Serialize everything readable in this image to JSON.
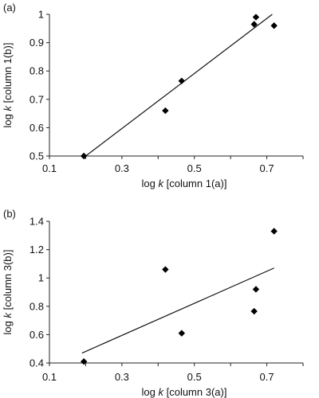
{
  "chart_data": [
    {
      "type": "scatter",
      "panel_label": "(a)",
      "xlabel": {
        "prefix": "log ",
        "italic": "k",
        "suffix": " [column 1(a)]"
      },
      "ylabel": {
        "prefix": "log ",
        "italic": "k",
        "suffix": " [column 1(b)]"
      },
      "xlim": [
        0.1,
        0.8
      ],
      "ylim": [
        0.5,
        1.0
      ],
      "x_ticks": [
        "0.1",
        "0.3",
        "0.5",
        "0.7"
      ],
      "y_ticks": [
        "0.5",
        "0.6",
        "0.7",
        "0.8",
        "0.9",
        "1"
      ],
      "points": [
        {
          "x": 0.195,
          "y": 0.5
        },
        {
          "x": 0.42,
          "y": 0.66
        },
        {
          "x": 0.465,
          "y": 0.765
        },
        {
          "x": 0.665,
          "y": 0.965
        },
        {
          "x": 0.67,
          "y": 0.99
        },
        {
          "x": 0.72,
          "y": 0.96
        }
      ],
      "trendline": {
        "x": [
          0.2,
          0.715
        ],
        "y": [
          0.5,
          1.0
        ]
      },
      "grid": false,
      "marker": "diamond"
    },
    {
      "type": "scatter",
      "panel_label": "(b)",
      "xlabel": {
        "prefix": "log ",
        "italic": "k",
        "suffix": " [column 3(a)]"
      },
      "ylabel": {
        "prefix": "log ",
        "italic": "k",
        "suffix": " [column 3(b)]"
      },
      "xlim": [
        0.1,
        0.8
      ],
      "ylim": [
        0.4,
        1.4
      ],
      "x_ticks": [
        "0.1",
        "0.3",
        "0.5",
        "0.7"
      ],
      "y_ticks": [
        "0.4",
        "0.6",
        "0.8",
        "1",
        "1.2",
        "1.4"
      ],
      "points": [
        {
          "x": 0.195,
          "y": 0.41
        },
        {
          "x": 0.42,
          "y": 1.06
        },
        {
          "x": 0.465,
          "y": 0.61
        },
        {
          "x": 0.665,
          "y": 0.765
        },
        {
          "x": 0.67,
          "y": 0.92
        },
        {
          "x": 0.72,
          "y": 1.33
        }
      ],
      "trendline": {
        "x": [
          0.19,
          0.72
        ],
        "y": [
          0.47,
          1.07
        ]
      },
      "grid": false,
      "marker": "diamond"
    }
  ]
}
